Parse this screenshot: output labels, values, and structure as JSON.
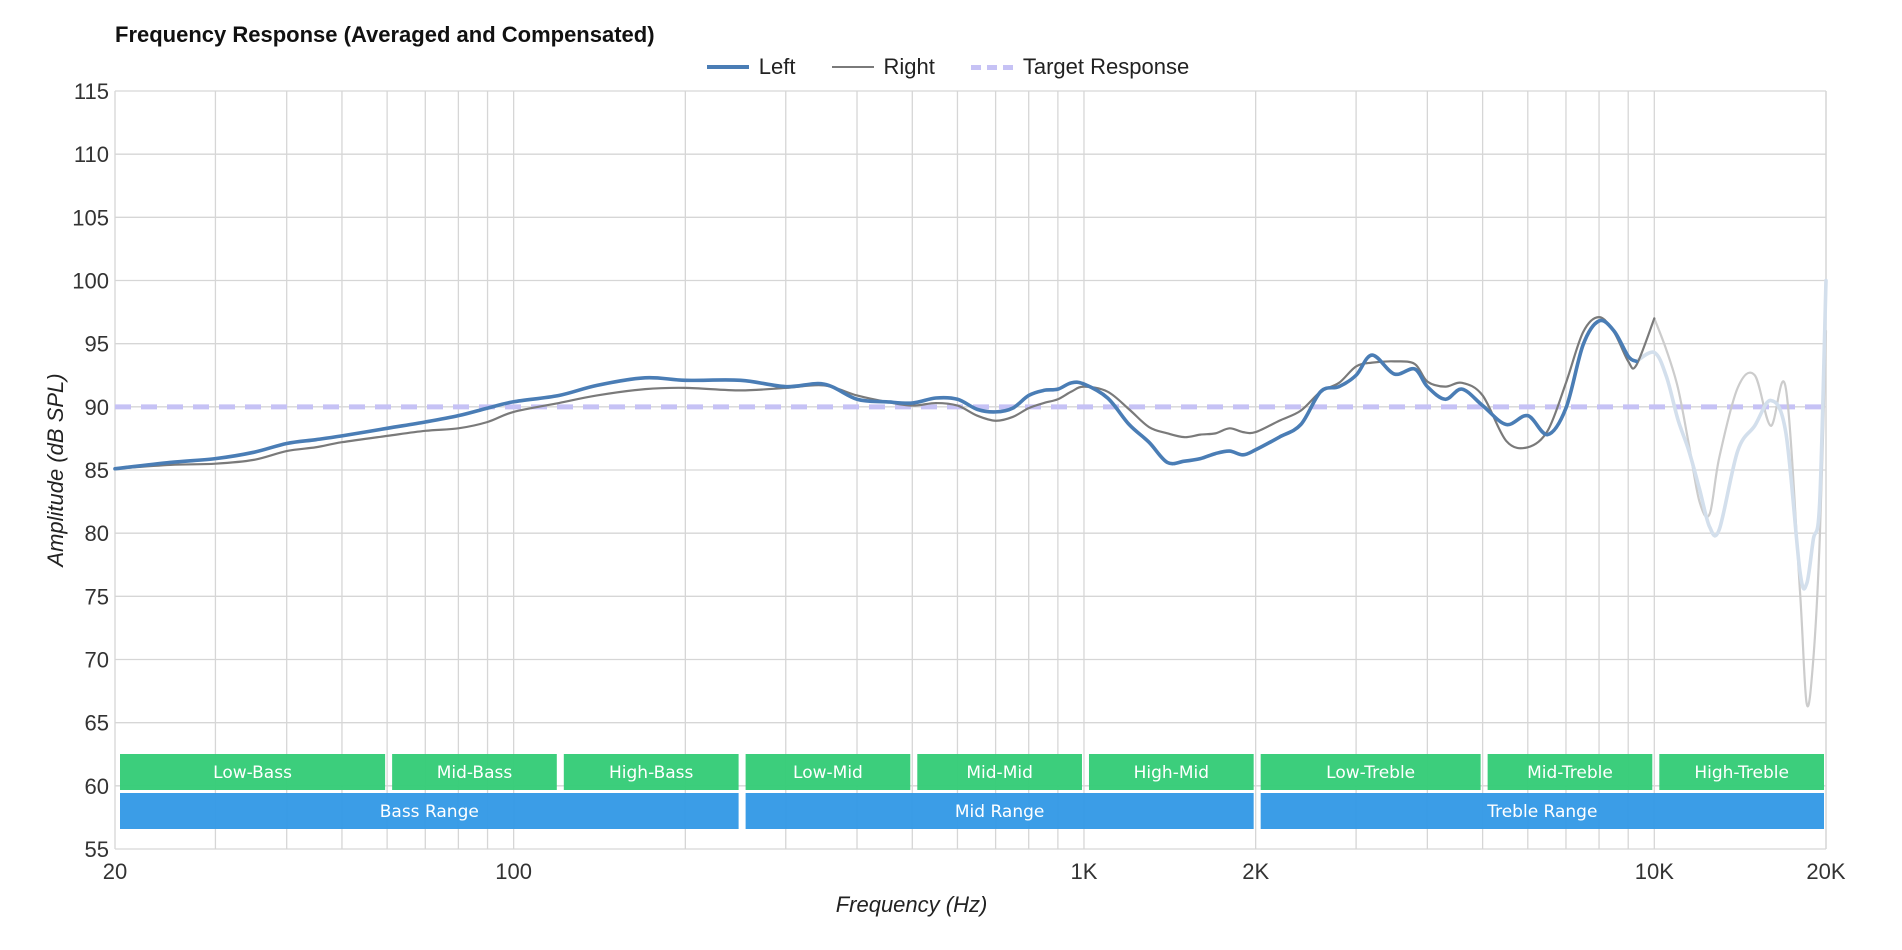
{
  "chart_data": {
    "type": "line",
    "title": "Frequency Response (Averaged and Compensated)",
    "xlabel": "Frequency (Hz)",
    "ylabel": "Amplitude (dB SPL)",
    "x_scale": "log",
    "xlim": [
      20,
      20000
    ],
    "ylim": [
      55,
      115
    ],
    "y_ticks": [
      55,
      60,
      65,
      70,
      75,
      80,
      85,
      90,
      95,
      100,
      105,
      110,
      115
    ],
    "x_ticks": [
      {
        "value": 20,
        "label": "20"
      },
      {
        "value": 100,
        "label": "100"
      },
      {
        "value": 1000,
        "label": "1K"
      },
      {
        "value": 2000,
        "label": "2K"
      },
      {
        "value": 10000,
        "label": "10K"
      },
      {
        "value": 20000,
        "label": "20K"
      }
    ],
    "grid": true,
    "legend_position": "top-center",
    "series": [
      {
        "name": "Left",
        "color": "#4a7db5",
        "faded_color": "#d3dfec",
        "faded_from_hz": 9300,
        "points": [
          [
            20,
            85.1
          ],
          [
            25,
            85.6
          ],
          [
            30,
            85.9
          ],
          [
            35,
            86.4
          ],
          [
            40,
            87.1
          ],
          [
            45,
            87.4
          ],
          [
            50,
            87.7
          ],
          [
            60,
            88.3
          ],
          [
            70,
            88.8
          ],
          [
            80,
            89.3
          ],
          [
            90,
            89.9
          ],
          [
            100,
            90.4
          ],
          [
            120,
            90.9
          ],
          [
            140,
            91.7
          ],
          [
            170,
            92.3
          ],
          [
            200,
            92.1
          ],
          [
            250,
            92.1
          ],
          [
            300,
            91.6
          ],
          [
            350,
            91.8
          ],
          [
            400,
            90.6
          ],
          [
            450,
            90.4
          ],
          [
            500,
            90.3
          ],
          [
            550,
            90.7
          ],
          [
            600,
            90.6
          ],
          [
            650,
            89.8
          ],
          [
            700,
            89.6
          ],
          [
            750,
            89.9
          ],
          [
            800,
            90.9
          ],
          [
            850,
            91.3
          ],
          [
            900,
            91.4
          ],
          [
            950,
            91.9
          ],
          [
            1000,
            91.8
          ],
          [
            1100,
            90.7
          ],
          [
            1200,
            88.6
          ],
          [
            1300,
            87.2
          ],
          [
            1400,
            85.6
          ],
          [
            1500,
            85.7
          ],
          [
            1600,
            85.9
          ],
          [
            1700,
            86.3
          ],
          [
            1800,
            86.5
          ],
          [
            1900,
            86.2
          ],
          [
            2000,
            86.6
          ],
          [
            2200,
            87.6
          ],
          [
            2400,
            88.6
          ],
          [
            2600,
            91.2
          ],
          [
            2800,
            91.6
          ],
          [
            3000,
            92.5
          ],
          [
            3200,
            94.1
          ],
          [
            3500,
            92.6
          ],
          [
            3800,
            93.0
          ],
          [
            4000,
            91.6
          ],
          [
            4300,
            90.6
          ],
          [
            4600,
            91.4
          ],
          [
            5000,
            90.1
          ],
          [
            5500,
            88.6
          ],
          [
            6000,
            89.3
          ],
          [
            6500,
            87.8
          ],
          [
            7000,
            89.9
          ],
          [
            7500,
            94.9
          ],
          [
            8000,
            96.8
          ],
          [
            8500,
            96.0
          ],
          [
            9000,
            94.0
          ],
          [
            9300,
            93.6
          ],
          [
            10000,
            94.3
          ],
          [
            10500,
            92.4
          ],
          [
            11000,
            89.0
          ],
          [
            11500,
            86.5
          ],
          [
            12000,
            83.5
          ],
          [
            12500,
            80.5
          ],
          [
            13000,
            80.3
          ],
          [
            14000,
            86.5
          ],
          [
            15000,
            88.5
          ],
          [
            16000,
            90.5
          ],
          [
            17000,
            88.0
          ],
          [
            18000,
            77.0
          ],
          [
            18500,
            76.0
          ],
          [
            19000,
            79.5
          ],
          [
            19500,
            82.5
          ],
          [
            20000,
            100.0
          ]
        ]
      },
      {
        "name": "Right",
        "color": "#7a7a7a",
        "faded_color": "#cccccc",
        "faded_from_hz": 10000,
        "points": [
          [
            20,
            85.1
          ],
          [
            25,
            85.4
          ],
          [
            30,
            85.5
          ],
          [
            35,
            85.8
          ],
          [
            40,
            86.5
          ],
          [
            45,
            86.8
          ],
          [
            50,
            87.2
          ],
          [
            60,
            87.7
          ],
          [
            70,
            88.1
          ],
          [
            80,
            88.3
          ],
          [
            90,
            88.8
          ],
          [
            100,
            89.6
          ],
          [
            120,
            90.3
          ],
          [
            140,
            90.9
          ],
          [
            170,
            91.4
          ],
          [
            200,
            91.5
          ],
          [
            250,
            91.3
          ],
          [
            300,
            91.5
          ],
          [
            350,
            91.7
          ],
          [
            400,
            90.9
          ],
          [
            450,
            90.4
          ],
          [
            500,
            90.1
          ],
          [
            550,
            90.3
          ],
          [
            600,
            90.1
          ],
          [
            650,
            89.3
          ],
          [
            700,
            88.9
          ],
          [
            750,
            89.2
          ],
          [
            800,
            89.9
          ],
          [
            850,
            90.3
          ],
          [
            900,
            90.6
          ],
          [
            950,
            91.2
          ],
          [
            1000,
            91.6
          ],
          [
            1100,
            91.2
          ],
          [
            1200,
            89.8
          ],
          [
            1300,
            88.4
          ],
          [
            1400,
            87.9
          ],
          [
            1500,
            87.6
          ],
          [
            1600,
            87.8
          ],
          [
            1700,
            87.9
          ],
          [
            1800,
            88.3
          ],
          [
            1900,
            88.0
          ],
          [
            2000,
            88.0
          ],
          [
            2200,
            88.9
          ],
          [
            2400,
            89.7
          ],
          [
            2600,
            91.2
          ],
          [
            2800,
            91.9
          ],
          [
            3000,
            93.2
          ],
          [
            3200,
            93.5
          ],
          [
            3500,
            93.6
          ],
          [
            3800,
            93.4
          ],
          [
            4000,
            92.0
          ],
          [
            4300,
            91.6
          ],
          [
            4600,
            91.9
          ],
          [
            5000,
            90.9
          ],
          [
            5500,
            87.3
          ],
          [
            6000,
            86.8
          ],
          [
            6500,
            88.1
          ],
          [
            7000,
            91.9
          ],
          [
            7500,
            95.9
          ],
          [
            8000,
            97.1
          ],
          [
            8500,
            95.9
          ],
          [
            9000,
            93.6
          ],
          [
            9300,
            93.3
          ],
          [
            10000,
            97.0
          ],
          [
            10500,
            94.5
          ],
          [
            11000,
            91.5
          ],
          [
            11500,
            87.0
          ],
          [
            12000,
            82.5
          ],
          [
            12500,
            81.5
          ],
          [
            13000,
            86.0
          ],
          [
            14000,
            91.5
          ],
          [
            15000,
            92.5
          ],
          [
            16000,
            88.5
          ],
          [
            17000,
            91.5
          ],
          [
            18000,
            75.5
          ],
          [
            18500,
            66.5
          ],
          [
            19000,
            70.0
          ],
          [
            19500,
            79.5
          ],
          [
            20000,
            96.0
          ]
        ]
      },
      {
        "name": "Target Response",
        "color": "#c6c2f5",
        "dashed": true,
        "points": [
          [
            20,
            90
          ],
          [
            20000,
            90
          ]
        ]
      }
    ],
    "annotations": {
      "bands_row1": [
        {
          "label": "Low-Bass",
          "from": 20,
          "to": 60
        },
        {
          "label": "Mid-Bass",
          "from": 60,
          "to": 120
        },
        {
          "label": "High-Bass",
          "from": 120,
          "to": 250
        },
        {
          "label": "Low-Mid",
          "from": 250,
          "to": 500
        },
        {
          "label": "Mid-Mid",
          "from": 500,
          "to": 1000
        },
        {
          "label": "High-Mid",
          "from": 1000,
          "to": 2000
        },
        {
          "label": "Low-Treble",
          "from": 2000,
          "to": 5000
        },
        {
          "label": "Mid-Treble",
          "from": 5000,
          "to": 10000
        },
        {
          "label": "High-Treble",
          "from": 10000,
          "to": 20000
        }
      ],
      "bands_row2": [
        {
          "label": "Bass Range",
          "from": 20,
          "to": 250
        },
        {
          "label": "Mid Range",
          "from": 250,
          "to": 2000
        },
        {
          "label": "Treble Range",
          "from": 2000,
          "to": 20000
        }
      ],
      "band_colors": {
        "row1": "#34cc77",
        "row2": "#3399e6"
      }
    }
  }
}
